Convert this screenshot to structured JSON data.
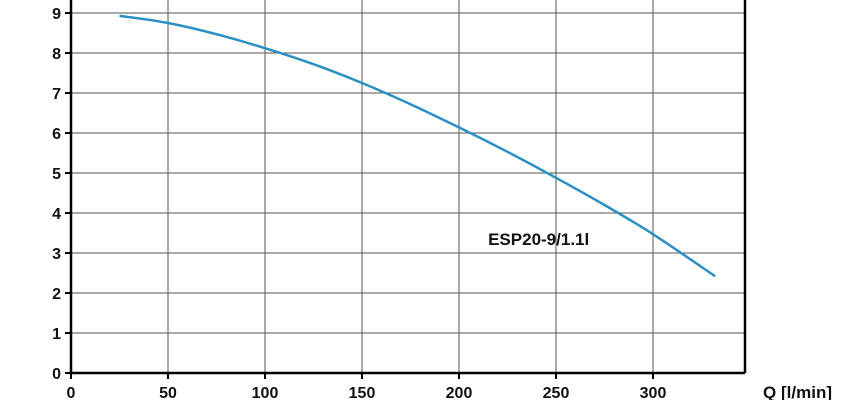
{
  "chart_data": {
    "type": "line",
    "xlabel": "Q [l/min]",
    "ylabel": "",
    "xlim": [
      0,
      350
    ],
    "ylim": [
      0,
      9
    ],
    "x_ticks": [
      "0",
      "50",
      "100",
      "150",
      "200",
      "250",
      "300"
    ],
    "y_ticks": [
      "0",
      "1",
      "2",
      "3",
      "4",
      "5",
      "6",
      "7",
      "8",
      "9"
    ],
    "grid": true,
    "series": [
      {
        "name": "ESP20-9/1.1l",
        "color": "#2a8fc4",
        "x": [
          25,
          50,
          75,
          100,
          125,
          150,
          175,
          200,
          225,
          250,
          275,
          300,
          332
        ],
        "y": [
          8.93,
          8.75,
          8.47,
          8.12,
          7.72,
          7.25,
          6.72,
          6.14,
          5.53,
          4.88,
          4.2,
          3.47,
          2.42
        ]
      }
    ],
    "annotations": [
      {
        "text": "ESP20-9/1.1l",
        "x": 215,
        "y": 3.2
      }
    ]
  }
}
